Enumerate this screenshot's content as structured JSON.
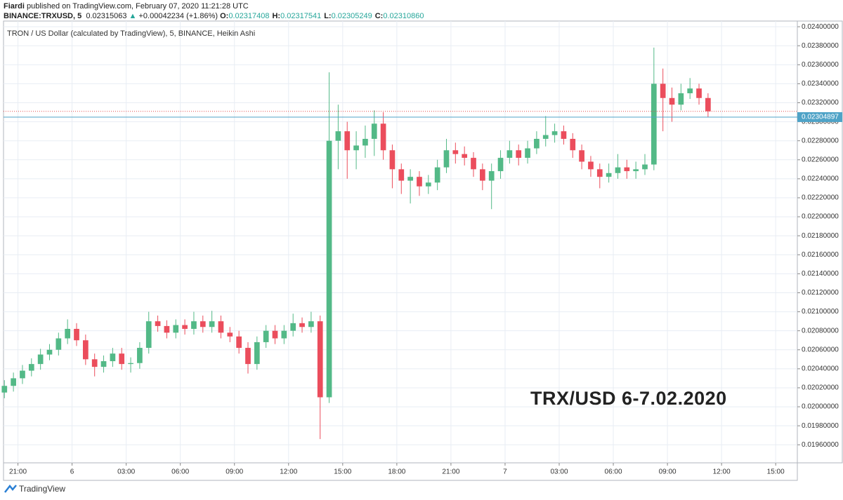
{
  "header": {
    "author": "Fiardi",
    "published": "published on TradingView.com, February 07, 2020 11:21:28 UTC",
    "symbol": "BINANCE:TRXUSD, 5",
    "price": "0.02315063",
    "arrow": "▲",
    "change": "+0.00042234 (+1.86%)",
    "ohlc": [
      {
        "label": "O:",
        "value": "0.02317408"
      },
      {
        "label": "H:",
        "value": "0.02317541"
      },
      {
        "label": "L:",
        "value": "0.02305249"
      },
      {
        "label": "C:",
        "value": "0.02310860"
      }
    ]
  },
  "footer": {
    "brand": "TradingView"
  },
  "chart_data": {
    "type": "candlestick",
    "subtitle": "TRON / US Dollar (calculated by TradingView), 5, BINANCE, Heikin Ashi",
    "annotation": "TRX/USD 6-7.02.2020",
    "up_color": "#53b987",
    "down_color": "#eb4d5c",
    "grid": true,
    "xlim": [
      -3.8,
      40.2
    ],
    "xticks": [
      {
        "value": -3,
        "label": "21:00"
      },
      {
        "value": 0,
        "label": "6"
      },
      {
        "value": 3,
        "label": "03:00"
      },
      {
        "value": 6,
        "label": "06:00"
      },
      {
        "value": 9,
        "label": "09:00"
      },
      {
        "value": 12,
        "label": "12:00"
      },
      {
        "value": 15,
        "label": "15:00"
      },
      {
        "value": 18,
        "label": "18:00"
      },
      {
        "value": 21,
        "label": "21:00"
      },
      {
        "value": 24,
        "label": "7"
      },
      {
        "value": 27,
        "label": "03:00"
      },
      {
        "value": 30,
        "label": "06:00"
      },
      {
        "value": 33,
        "label": "09:00"
      },
      {
        "value": 36,
        "label": "12:00"
      },
      {
        "value": 39,
        "label": "15:00"
      }
    ],
    "ylim": [
      0.01941,
      0.02406
    ],
    "yticks": [
      {
        "value": 0.0196,
        "label": "0.01960000"
      },
      {
        "value": 0.0198,
        "label": "0.01980000"
      },
      {
        "value": 0.02,
        "label": "0.02000000"
      },
      {
        "value": 0.0202,
        "label": "0.02020000"
      },
      {
        "value": 0.0204,
        "label": "0.02040000"
      },
      {
        "value": 0.0206,
        "label": "0.02060000"
      },
      {
        "value": 0.0208,
        "label": "0.02080000"
      },
      {
        "value": 0.021,
        "label": "0.02100000"
      },
      {
        "value": 0.0212,
        "label": "0.02120000"
      },
      {
        "value": 0.0214,
        "label": "0.02140000"
      },
      {
        "value": 0.0216,
        "label": "0.02160000"
      },
      {
        "value": 0.0218,
        "label": "0.02180000"
      },
      {
        "value": 0.022,
        "label": "0.02200000"
      },
      {
        "value": 0.0222,
        "label": "0.02220000"
      },
      {
        "value": 0.0224,
        "label": "0.02240000"
      },
      {
        "value": 0.0226,
        "label": "0.02260000"
      },
      {
        "value": 0.0228,
        "label": "0.02280000"
      },
      {
        "value": 0.023,
        "label": "0.02300000"
      },
      {
        "value": 0.0232,
        "label": "0.02320000"
      },
      {
        "value": 0.0234,
        "label": "0.02340000"
      },
      {
        "value": 0.0236,
        "label": "0.02360000"
      },
      {
        "value": 0.0238,
        "label": "0.02380000"
      },
      {
        "value": 0.024,
        "label": "0.02400000"
      }
    ],
    "last_price": 0.02304897,
    "last_price_color": "#4fa3c7",
    "reference_price": 0.02311,
    "reference_color": "#e34b4b",
    "x": [
      -3.75,
      -3.25,
      -2.75,
      -2.25,
      -1.75,
      -1.25,
      -0.75,
      -0.25,
      0.25,
      0.75,
      1.25,
      1.75,
      2.25,
      2.75,
      3.25,
      3.75,
      4.25,
      4.75,
      5.25,
      5.75,
      6.25,
      6.75,
      7.25,
      7.75,
      8.25,
      8.75,
      9.25,
      9.75,
      10.25,
      10.75,
      11.25,
      11.75,
      12.25,
      12.75,
      13.25,
      13.75,
      14.25,
      14.75,
      15.25,
      15.75,
      16.25,
      16.75,
      17.25,
      17.75,
      18.25,
      18.75,
      19.25,
      19.75,
      20.25,
      20.75,
      21.25,
      21.75,
      22.25,
      22.75,
      23.25,
      23.75,
      24.25,
      24.75,
      25.25,
      25.75,
      26.25,
      26.75,
      27.25,
      27.75,
      28.25,
      28.75,
      29.25,
      29.75,
      30.25,
      30.75,
      31.25,
      31.75,
      32.25,
      32.75,
      33.25,
      33.75,
      34.25,
      34.75,
      35.25
    ],
    "open": [
      0.02015,
      0.02022,
      0.0203,
      0.02038,
      0.02045,
      0.02055,
      0.0206,
      0.02072,
      0.02082,
      0.0207,
      0.0205,
      0.02042,
      0.02048,
      0.02056,
      0.02045,
      0.02046,
      0.02062,
      0.0209,
      0.02085,
      0.02078,
      0.02086,
      0.02082,
      0.0209,
      0.02084,
      0.0209,
      0.02078,
      0.02074,
      0.02062,
      0.02045,
      0.02068,
      0.0208,
      0.02072,
      0.0208,
      0.02088,
      0.02084,
      0.0209,
      0.0201,
      0.0228,
      0.0229,
      0.0227,
      0.02275,
      0.02282,
      0.02298,
      0.0227,
      0.0225,
      0.02238,
      0.02242,
      0.02232,
      0.02236,
      0.02252,
      0.0227,
      0.02266,
      0.02262,
      0.0225,
      0.02238,
      0.02248,
      0.02262,
      0.0227,
      0.02262,
      0.02272,
      0.02282,
      0.02286,
      0.0229,
      0.02282,
      0.0227,
      0.02258,
      0.0225,
      0.02242,
      0.02246,
      0.02252,
      0.02248,
      0.0225,
      0.02255,
      0.0234,
      0.02325,
      0.02318,
      0.0233,
      0.02335,
      0.02325
    ],
    "high": [
      0.02028,
      0.02036,
      0.02044,
      0.02051,
      0.02061,
      0.02066,
      0.02078,
      0.02092,
      0.02088,
      0.02076,
      0.02056,
      0.02054,
      0.02062,
      0.02062,
      0.02052,
      0.02068,
      0.021,
      0.02096,
      0.02091,
      0.02092,
      0.02092,
      0.021,
      0.02096,
      0.02101,
      0.02096,
      0.02084,
      0.0208,
      0.02068,
      0.02074,
      0.02086,
      0.02086,
      0.02086,
      0.02098,
      0.02094,
      0.021,
      0.02096,
      0.02352,
      0.02318,
      0.023,
      0.0229,
      0.02296,
      0.02312,
      0.0231,
      0.02276,
      0.02256,
      0.0225,
      0.02248,
      0.02244,
      0.0226,
      0.02282,
      0.02278,
      0.02274,
      0.02268,
      0.02256,
      0.02256,
      0.0227,
      0.0228,
      0.02276,
      0.0228,
      0.0229,
      0.02306,
      0.02298,
      0.02296,
      0.02288,
      0.02276,
      0.02264,
      0.02256,
      0.02256,
      0.02266,
      0.0226,
      0.02258,
      0.02266,
      0.02378,
      0.02356,
      0.02336,
      0.0234,
      0.02346,
      0.0234,
      0.0233
    ],
    "low": [
      0.02009,
      0.02016,
      0.02024,
      0.02032,
      0.02039,
      0.02049,
      0.02054,
      0.02066,
      0.02064,
      0.02044,
      0.02032,
      0.02036,
      0.02042,
      0.02039,
      0.02036,
      0.0204,
      0.02056,
      0.02079,
      0.02072,
      0.02072,
      0.02076,
      0.02076,
      0.02078,
      0.02078,
      0.02072,
      0.02068,
      0.02056,
      0.02035,
      0.02039,
      0.02062,
      0.02066,
      0.02066,
      0.02074,
      0.02078,
      0.02078,
      0.01966,
      0.02004,
      0.0225,
      0.0224,
      0.0225,
      0.02262,
      0.02264,
      0.0226,
      0.0223,
      0.02224,
      0.02214,
      0.02222,
      0.02224,
      0.02228,
      0.02246,
      0.02256,
      0.02254,
      0.02242,
      0.02228,
      0.02208,
      0.0224,
      0.02256,
      0.02254,
      0.02256,
      0.02266,
      0.02274,
      0.02278,
      0.02276,
      0.02262,
      0.0225,
      0.02242,
      0.0223,
      0.02236,
      0.0224,
      0.0224,
      0.0224,
      0.02244,
      0.02249,
      0.0229,
      0.023,
      0.02312,
      0.02324,
      0.02318,
      0.02305
    ],
    "close": [
      0.02022,
      0.0203,
      0.02038,
      0.02045,
      0.02055,
      0.0206,
      0.02072,
      0.02082,
      0.0207,
      0.0205,
      0.02042,
      0.02048,
      0.02056,
      0.02045,
      0.02046,
      0.02062,
      0.0209,
      0.02085,
      0.02078,
      0.02086,
      0.02082,
      0.0209,
      0.02084,
      0.0209,
      0.02078,
      0.02074,
      0.02062,
      0.02045,
      0.02068,
      0.0208,
      0.02072,
      0.0208,
      0.02088,
      0.02084,
      0.0209,
      0.0201,
      0.0228,
      0.0229,
      0.0227,
      0.02275,
      0.02282,
      0.02298,
      0.0227,
      0.0225,
      0.02238,
      0.02242,
      0.02232,
      0.02236,
      0.02252,
      0.0227,
      0.02266,
      0.02262,
      0.0225,
      0.02238,
      0.02248,
      0.02262,
      0.0227,
      0.02262,
      0.02272,
      0.02282,
      0.02286,
      0.0229,
      0.02282,
      0.0227,
      0.02258,
      0.0225,
      0.02242,
      0.02246,
      0.02252,
      0.02248,
      0.0225,
      0.02255,
      0.0234,
      0.02325,
      0.02318,
      0.0233,
      0.02335,
      0.02325,
      0.02311
    ]
  }
}
